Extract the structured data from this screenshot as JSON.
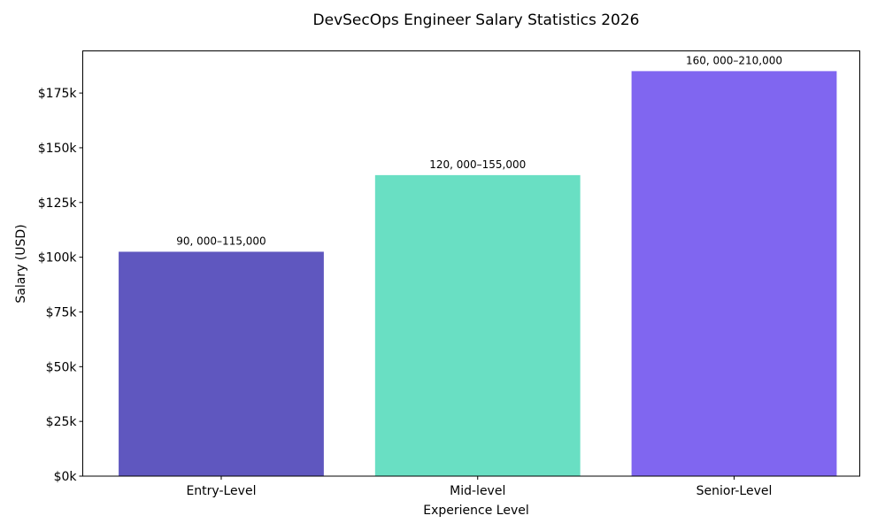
{
  "chart_data": {
    "type": "bar",
    "title": "DevSecOps Engineer Salary Statistics 2026",
    "xlabel": "Experience Level",
    "ylabel": "Salary (USD)",
    "categories": [
      "Entry-Level",
      "Mid-level",
      "Senior-Level"
    ],
    "values": [
      102500,
      137500,
      185000
    ],
    "data_labels": [
      "90, 000–115,000",
      "120, 000–155,000",
      "160, 000–210,000"
    ],
    "colors": [
      "#5F57BF",
      "#69DFC3",
      "#8066F0"
    ],
    "ylim": [
      0,
      194250
    ],
    "yticks": [
      0,
      25000,
      50000,
      75000,
      100000,
      125000,
      150000,
      175000
    ],
    "ytick_labels": [
      "$0k",
      "$25k",
      "$50k",
      "$75k",
      "$100k",
      "$125k",
      "$150k",
      "$175k"
    ],
    "grid": false,
    "legend": "none"
  }
}
